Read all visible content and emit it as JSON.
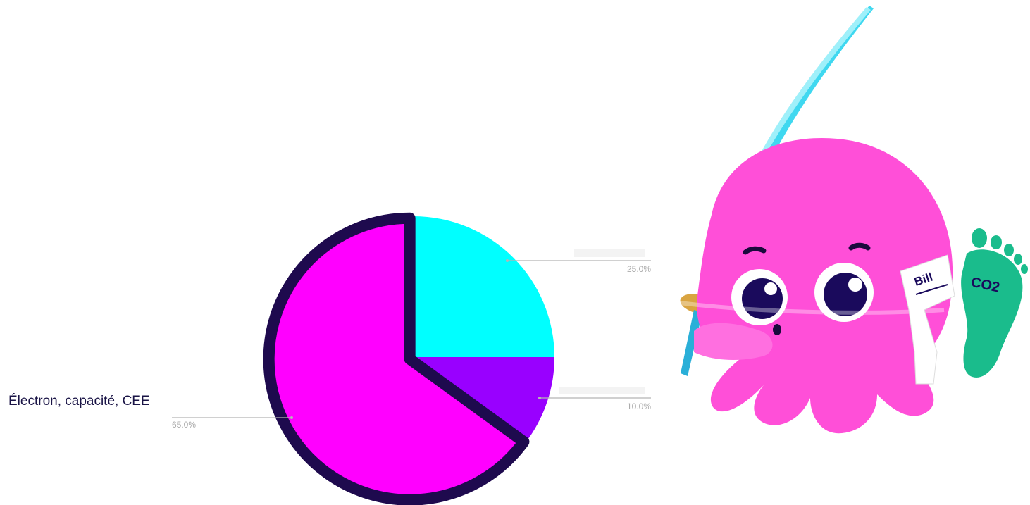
{
  "chart_data": {
    "type": "pie",
    "slices": [
      {
        "value": 25.0,
        "label": "25.0%",
        "color": "#00FFFF"
      },
      {
        "value": 10.0,
        "label": "10.0%",
        "color": "#9900FF"
      },
      {
        "value": 65.0,
        "label": "65.0%",
        "color": "#FF00FF",
        "highlighted": true
      }
    ],
    "highlight_label": "Électron, capacité, CEE",
    "highlight_outline_color": "#1E0A4E",
    "legend": "none"
  },
  "illustration": {
    "name": "octopus-mascot",
    "body_color": "#FF4FD8",
    "foot_color": "#1ABC8C",
    "sword_color": "#3FD8F0",
    "bill_text": "Bill",
    "foot_text": "CO2"
  }
}
